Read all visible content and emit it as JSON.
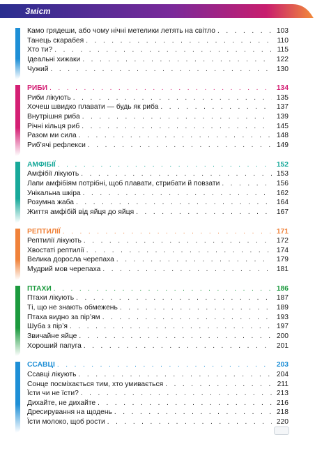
{
  "header": {
    "title": "Зміст"
  },
  "intro": {
    "color": "#1e8fd6",
    "items": [
      {
        "title": "Камо грядеши, або чому нічні метелики летять на світло",
        "page": "103"
      },
      {
        "title": "Танець скарабея",
        "page": "110"
      },
      {
        "title": "Хто ти?",
        "page": "115"
      },
      {
        "title": "Ідеальні хижаки",
        "page": "122"
      },
      {
        "title": "Чужий",
        "page": "130"
      }
    ]
  },
  "sections": [
    {
      "heading": "РИБИ",
      "page": "134",
      "color": "#d41f74",
      "items": [
        {
          "title": "Риби лікують",
          "page": "135"
        },
        {
          "title": "Хочеш швидко плавати — будь як риба",
          "page": "137"
        },
        {
          "title": "Внутрішня риба",
          "page": "139"
        },
        {
          "title": "Річні кільця риб",
          "page": "145"
        },
        {
          "title": "Разом ми сила",
          "page": "148"
        },
        {
          "title": "Риб’ячі рефлекси",
          "page": "149"
        }
      ]
    },
    {
      "heading": "АМФІБІЇ",
      "page": "152",
      "color": "#18a99a",
      "items": [
        {
          "title": "Амфібії лікують",
          "page": "153"
        },
        {
          "title": "Лапи амфібіям потрібні, щоб плавати, стрибати й повзати",
          "page": "156"
        },
        {
          "title": "Унікальна шкіра",
          "page": "162"
        },
        {
          "title": "Розумна жаба",
          "page": "164"
        },
        {
          "title": "Життя амфібій від яйця до яйця",
          "page": "167"
        }
      ]
    },
    {
      "heading": "РЕПТИЛІЇ",
      "page": "171",
      "color": "#f0823a",
      "items": [
        {
          "title": "Рептилії лікують",
          "page": "172"
        },
        {
          "title": "Хвостаті рептилії",
          "page": "174"
        },
        {
          "title": "Велика доросла черепаха",
          "page": "179"
        },
        {
          "title": "Мудрий мов черепаха",
          "page": "181"
        }
      ]
    },
    {
      "heading": "ПТАХИ",
      "page": "186",
      "color": "#1c9a3e",
      "items": [
        {
          "title": "Птахи лікують",
          "page": "187"
        },
        {
          "title": "Ті, що не знають обмежень",
          "page": "189"
        },
        {
          "title": "Птаха видно за пір’ям",
          "page": "193"
        },
        {
          "title": "Шуба з пір’я",
          "page": "197"
        },
        {
          "title": "Звичайне яйце",
          "page": "200"
        },
        {
          "title": "Хороший папуга",
          "page": "201"
        }
      ]
    },
    {
      "heading": "ССАВЦІ",
      "page": "203",
      "color": "#1e8fd6",
      "items": [
        {
          "title": "Ссавці лікують",
          "page": "204"
        },
        {
          "title": "Сонце посміхається тим, хто умивається",
          "page": "211"
        },
        {
          "title": "Їсти чи не їсти?",
          "page": "213"
        },
        {
          "title": "Дихайте, не дихайте",
          "page": "216"
        },
        {
          "title": "Дресирування на щодень",
          "page": "218"
        },
        {
          "title": "Їсти молоко, щоб рости",
          "page": "220"
        }
      ]
    }
  ]
}
